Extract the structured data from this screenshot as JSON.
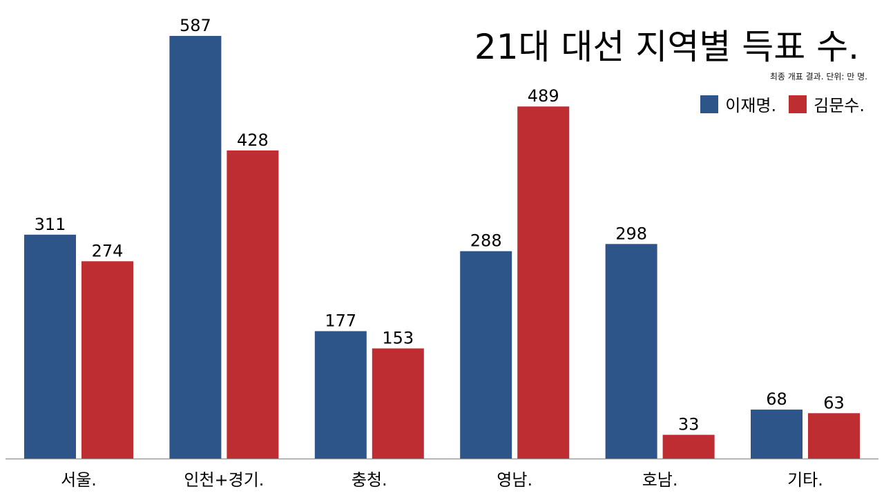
{
  "chart_data": {
    "type": "bar",
    "title": "21대 대선 지역별 득표 수.",
    "subtitle": "최종 개표 결과.  단위: 만 명.",
    "xlabel": "",
    "ylabel": "",
    "categories": [
      "서울.",
      "인천+경기.",
      "충청.",
      "영남.",
      "호남.",
      "기타."
    ],
    "series": [
      {
        "name": "이재명.",
        "color": "#2e5589",
        "values": [
          311,
          587,
          177,
          288,
          298,
          68
        ]
      },
      {
        "name": "김문수.",
        "color": "#be2d31",
        "values": [
          274,
          428,
          153,
          489,
          33,
          63
        ]
      }
    ],
    "ylim": [
      0,
      615
    ],
    "grid": false,
    "legend_position": "top-right"
  }
}
